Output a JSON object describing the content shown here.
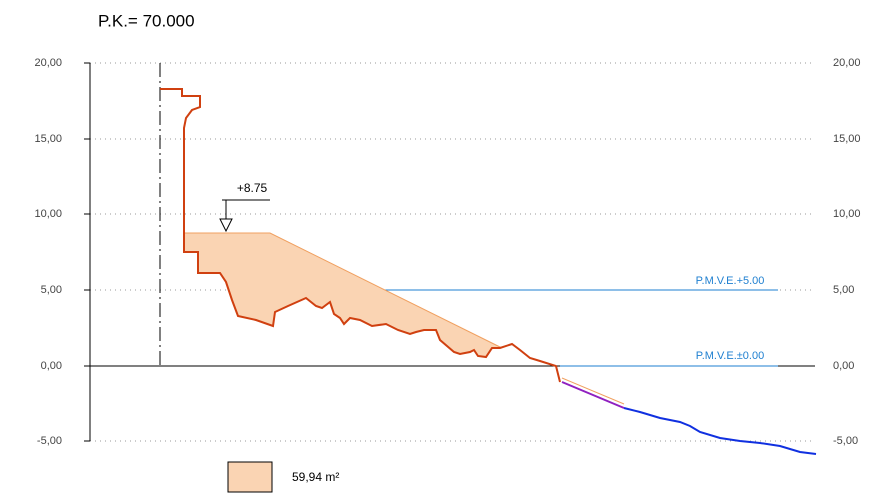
{
  "header": {
    "title": "P.K.=  70.000"
  },
  "axis": {
    "left_labels": [
      "20,00",
      "15,00",
      "10,00",
      "5,00",
      "0,00",
      "-5,00"
    ],
    "right_labels": [
      "20,00",
      "15,00",
      "10,00",
      "5,00",
      "0,00",
      "-5,00"
    ]
  },
  "annotations": {
    "level": "+8.75",
    "water_high": "P.M.V.E.+5.00",
    "water_zero": "P.M.V.E.±0.00"
  },
  "legend": {
    "area": "59,94 m²"
  }
}
